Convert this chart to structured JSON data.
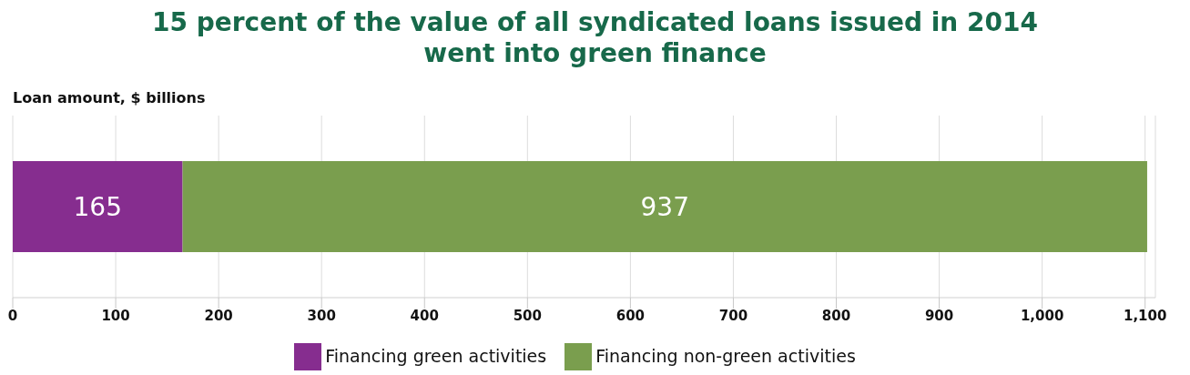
{
  "chart_data": {
    "type": "bar",
    "orientation": "horizontal",
    "stacked": true,
    "title": "15 percent of the value of all syndicated loans issued in 2014\nwent into green finance",
    "xlabel": "Loan amount, $ billions",
    "categories": [
      null
    ],
    "series": [
      {
        "name": "Financing green activities",
        "color": "#862d8f",
        "values": [
          165
        ]
      },
      {
        "name": "Financing non-green activities",
        "color": "#7a9e4e",
        "values": [
          937
        ]
      }
    ],
    "xlim": [
      0,
      1110
    ],
    "xticks": [
      0,
      100,
      200,
      300,
      400,
      500,
      600,
      700,
      800,
      900,
      {
        "value": 1000,
        "label": "1,000"
      },
      {
        "value": 1100,
        "label": "1,100"
      }
    ],
    "grid": "x",
    "legend": "bottom",
    "data_labels": true
  }
}
